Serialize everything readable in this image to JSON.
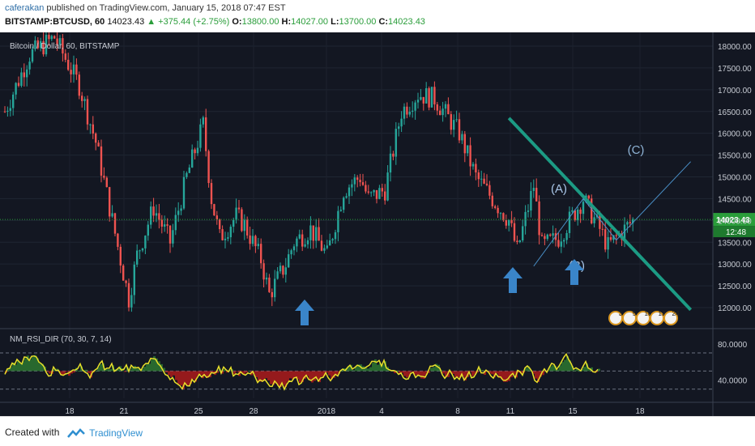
{
  "header": {
    "author": "caferakan",
    "published_text": "published on TradingView.com, January 15, 2018 07:47 EST",
    "symbol": "BITSTAMP:BTCUSD, 60",
    "last_price": "14023.43",
    "change": "▲ +375.44 (+2.75%)",
    "o_label": "O:",
    "o_value": "13800.00",
    "h_label": "H:",
    "h_value": "14027.00",
    "l_label": "L:",
    "l_value": "13700.00",
    "c_label": "C:",
    "c_value": "14023.43"
  },
  "footer": {
    "created_with": "Created with",
    "brand": "TradingView"
  },
  "colors": {
    "background": "#131722",
    "up": "#26a69a",
    "down": "#ef5350",
    "trendline": "#1c9b84",
    "wave": "#4a90c8",
    "price_tag": "#2a9d3a"
  },
  "chart_data": [
    {
      "type": "candlestick",
      "title": "Bitcoin / Dollar, 60, BITSTAMP",
      "ylim": [
        11500,
        18500
      ],
      "y_ticks": [
        "18000.00",
        "17500.00",
        "17000.00",
        "16500.00",
        "16000.00",
        "15500.00",
        "15000.00",
        "14500.00",
        "14000.00",
        "13500.00",
        "13000.00",
        "12500.00",
        "12000.00"
      ],
      "x_ticks": [
        "18",
        "21",
        "25",
        "28",
        "2018",
        "4",
        "8",
        "11",
        "15",
        "18"
      ],
      "last_price_label": "14023.43",
      "countdown_label": "12:48",
      "close_path": [
        [
          0,
          16500
        ],
        [
          3,
          17800
        ],
        [
          6,
          18200
        ],
        [
          9,
          17100
        ],
        [
          11,
          15800
        ],
        [
          13,
          14000
        ],
        [
          15,
          12200
        ],
        [
          16,
          13200
        ],
        [
          18,
          14300
        ],
        [
          20,
          13500
        ],
        [
          22,
          15000
        ],
        [
          24,
          16200
        ],
        [
          25,
          14500
        ],
        [
          26,
          13600
        ],
        [
          28,
          14100
        ],
        [
          29,
          13900
        ],
        [
          31,
          13100
        ],
        [
          32,
          12300
        ],
        [
          34,
          13000
        ],
        [
          35,
          13500
        ],
        [
          37,
          13800
        ],
        [
          39,
          13200
        ],
        [
          41,
          14700
        ],
        [
          43,
          15000
        ],
        [
          44,
          14500
        ],
        [
          46,
          14700
        ],
        [
          48,
          16500
        ],
        [
          50,
          16900
        ],
        [
          52,
          16800
        ],
        [
          55,
          16000
        ],
        [
          57,
          15000
        ],
        [
          59,
          14500
        ],
        [
          61,
          14000
        ],
        [
          62,
          13300
        ],
        [
          64,
          14800
        ],
        [
          65,
          13400
        ],
        [
          67,
          13600
        ],
        [
          69,
          14200
        ],
        [
          70,
          14500
        ],
        [
          72,
          13800
        ],
        [
          73,
          13400
        ],
        [
          75,
          13800
        ],
        [
          76,
          14000
        ]
      ],
      "annotations": {
        "wave_labels": [
          "(A)",
          "(B)",
          "(C)"
        ],
        "arrows": 3,
        "trendline_from": [
          61,
          16350
        ],
        "trendline_to": [
          83,
          11950
        ],
        "event_badges": [
          "3",
          "5",
          "10",
          "13",
          "24"
        ]
      }
    },
    {
      "type": "line",
      "title": "NM_RSI_DIR (70, 30, 7, 14)",
      "ylim": [
        20,
        95
      ],
      "y_ticks": [
        "80.0000",
        "40.0000"
      ],
      "levels": [
        70,
        50,
        30
      ]
    }
  ]
}
